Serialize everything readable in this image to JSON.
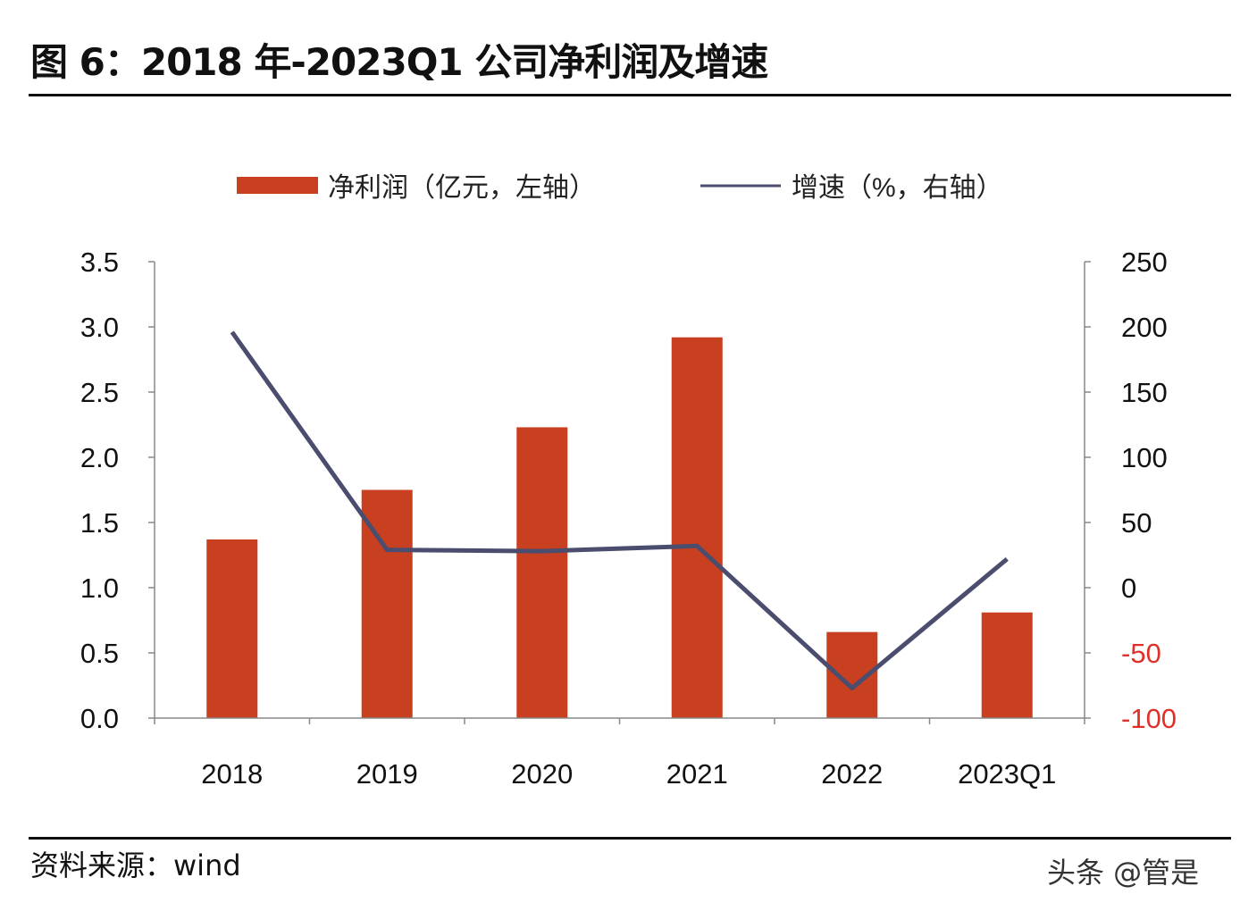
{
  "title": "图 6：2018 年-2023Q1 公司净利润及增速",
  "source": "资料来源：wind",
  "watermark": "头条 @管是",
  "chart_data": {
    "type": "bar+line",
    "categories": [
      "2018",
      "2019",
      "2020",
      "2021",
      "2022",
      "2023Q1"
    ],
    "series": [
      {
        "name": "净利润（亿元，左轴）",
        "type": "bar",
        "axis": "left",
        "color": "#C8401F",
        "values": [
          1.37,
          1.75,
          2.23,
          2.92,
          0.66,
          0.81
        ]
      },
      {
        "name": "增速（%，右轴）",
        "type": "line",
        "axis": "right",
        "color": "#4A4D6E",
        "values": [
          196,
          29,
          28,
          32,
          -77,
          22
        ]
      }
    ],
    "left_axis": {
      "ylim": [
        0,
        3.5
      ],
      "ticks": [
        "0.0",
        "0.5",
        "1.0",
        "1.5",
        "2.0",
        "2.5",
        "3.0",
        "3.5"
      ]
    },
    "right_axis": {
      "ylim": [
        -100,
        250
      ],
      "ticks": [
        "-100",
        "-50",
        "0",
        "50",
        "100",
        "150",
        "200",
        "250"
      ],
      "negative_color": "#E0302A"
    },
    "legend": "top",
    "grid": false
  }
}
